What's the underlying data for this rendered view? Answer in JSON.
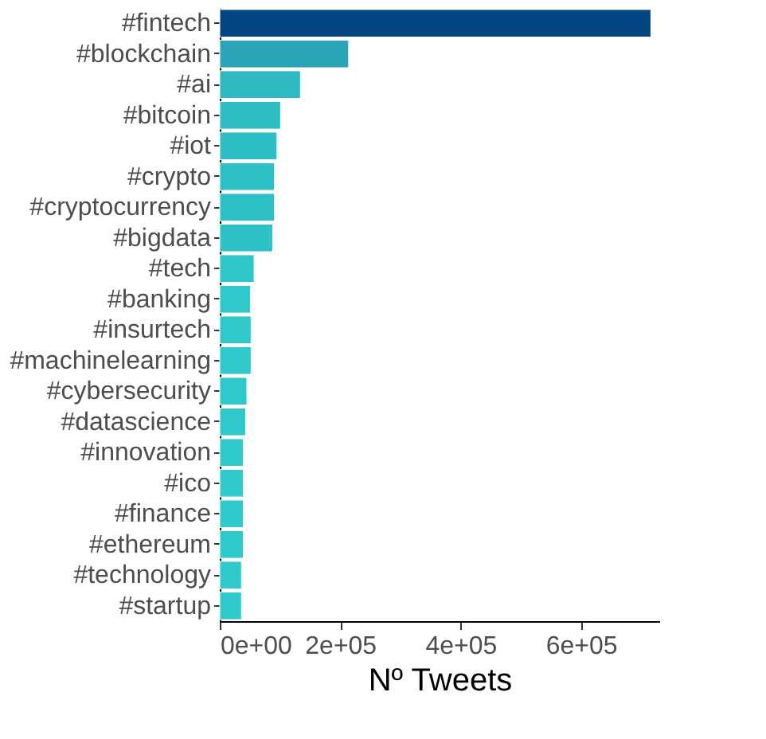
{
  "chart_data": {
    "type": "bar",
    "orientation": "horizontal",
    "xlabel": "Nº Tweets",
    "categories": [
      "#fintech",
      "#blockchain",
      "#ai",
      "#bitcoin",
      "#iot",
      "#crypto",
      "#cryptocurrency",
      "#bigdata",
      "#tech",
      "#banking",
      "#insurtech",
      "#machinelearning",
      "#cybersecurity",
      "#datascience",
      "#innovation",
      "#ico",
      "#finance",
      "#ethereum",
      "#technology",
      "#startup"
    ],
    "values": [
      716000,
      214000,
      134000,
      101000,
      95000,
      91000,
      91000,
      88000,
      57000,
      51000,
      52000,
      52000,
      45000,
      43000,
      39000,
      39000,
      39000,
      39000,
      36000,
      36000
    ],
    "colors": [
      "#004481",
      "#2ba6b8",
      "#2db8c2",
      "#2ebdc5",
      "#2ebfc6",
      "#2ec0c7",
      "#2ec0c7",
      "#2ec1c7",
      "#2fc7ca",
      "#2fc8cb",
      "#2fc8cb",
      "#2fc8cb",
      "#2fc9cb",
      "#2fc9cc",
      "#2fcacc",
      "#2fcacc",
      "#2fcacc",
      "#2fcacc",
      "#2fcbcc",
      "#2fcbcc"
    ],
    "xlim": [
      0,
      730000
    ],
    "xticks": [
      {
        "value": 0,
        "label": "0e+00"
      },
      {
        "value": 200000,
        "label": "2e+05"
      },
      {
        "value": 400000,
        "label": "4e+05"
      },
      {
        "value": 600000,
        "label": "6e+05"
      }
    ],
    "grid": false
  }
}
